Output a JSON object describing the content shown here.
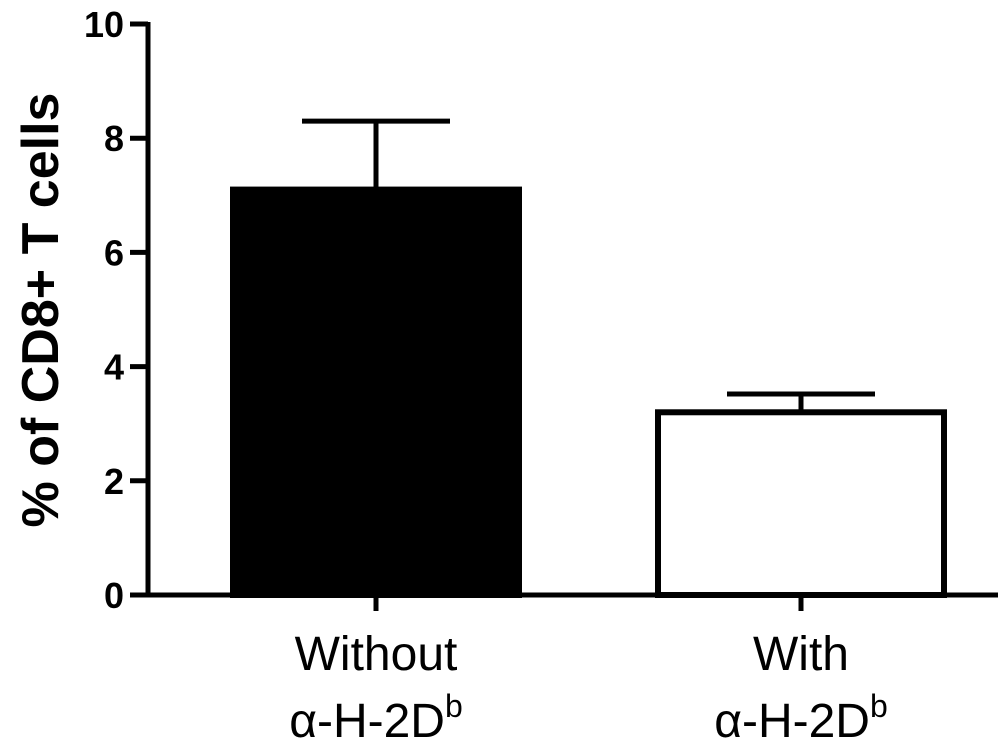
{
  "chart_data": {
    "type": "bar",
    "title": "",
    "xlabel": "",
    "ylabel": "% of CD8+ T cells",
    "ylim": [
      0,
      10
    ],
    "yticks": [
      "0",
      "2",
      "4",
      "6",
      "8",
      "10"
    ],
    "categories": [
      {
        "line1": "Without",
        "line2_prefix": "α-H-2D",
        "line2_sup": "b"
      },
      {
        "line1": "With",
        "line2_prefix": "α-H-2D",
        "line2_sup": "b"
      }
    ],
    "values": [
      7.1,
      3.2
    ],
    "errors": [
      1.2,
      0.32
    ],
    "bar_fills": [
      "#000000",
      "#ffffff"
    ],
    "grid": false,
    "legend": "none"
  }
}
